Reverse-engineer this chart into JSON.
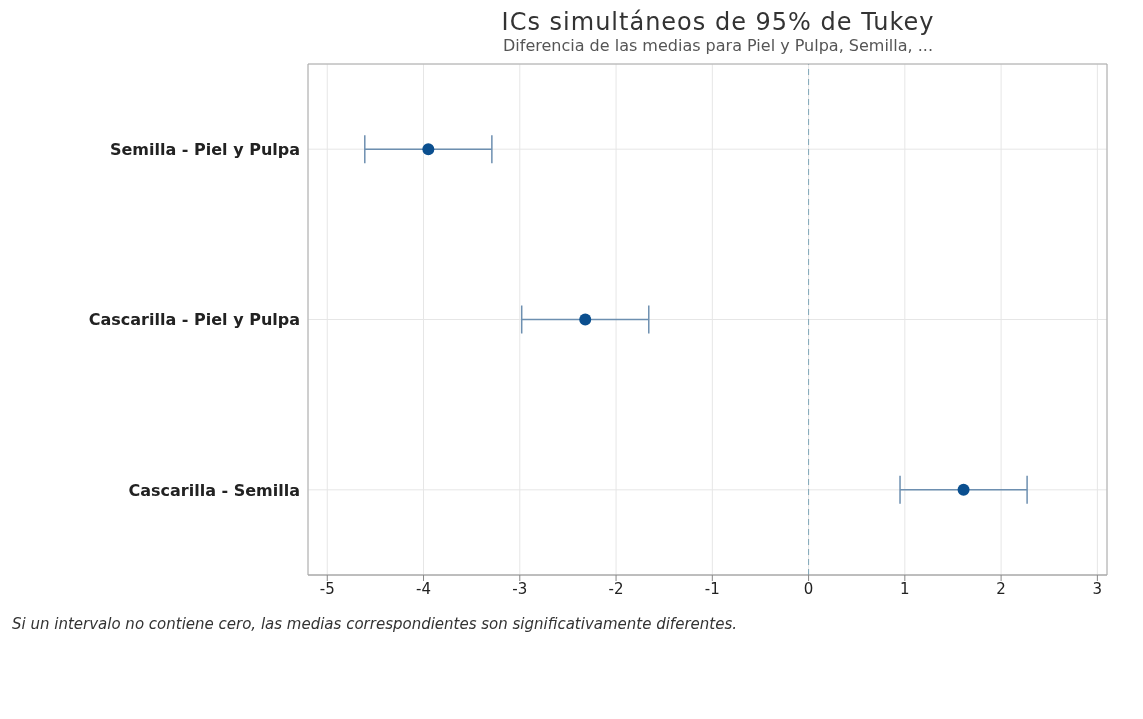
{
  "chart_data": {
    "type": "scatter",
    "title": "ICs simultáneos de 95% de Tukey",
    "subtitle": "Diferencia de las medias para Piel y Pulpa, Semilla, ...",
    "categories": [
      "Semilla - Piel y Pulpa",
      "Cascarilla - Piel y Pulpa",
      "Cascarilla - Semilla"
    ],
    "orientation": "horizontal",
    "values": [
      -3.95,
      -2.32,
      1.61
    ],
    "errors": [
      0.66,
      0.66,
      0.66
    ],
    "color": "#0b4f8f",
    "xlim": [
      -5.2,
      3.1
    ],
    "xticks": [
      -5,
      -4,
      -3,
      -2,
      -1,
      0,
      1,
      2,
      3
    ],
    "grid": true,
    "marker": "circle",
    "ref_lines": [
      {
        "axis": "x",
        "value": 0,
        "color": "#7fa6b8",
        "line_style": "dashed"
      }
    ],
    "annotations": [
      "Si un intervalo no contiene cero, las medias correspondientes son significativamente diferentes."
    ]
  }
}
